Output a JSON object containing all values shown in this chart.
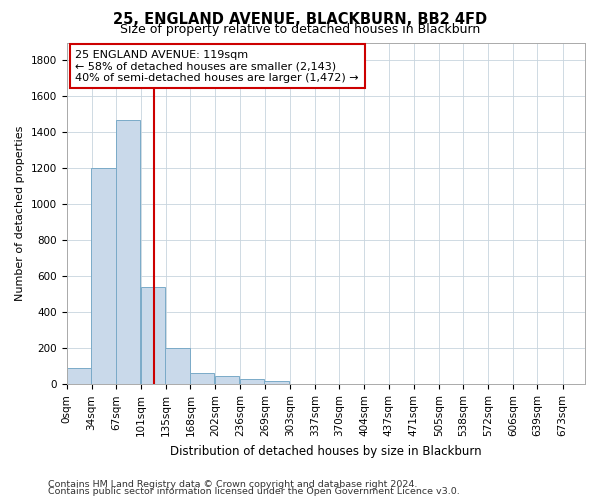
{
  "title": "25, ENGLAND AVENUE, BLACKBURN, BB2 4FD",
  "subtitle": "Size of property relative to detached houses in Blackburn",
  "xlabel": "Distribution of detached houses by size in Blackburn",
  "ylabel": "Number of detached properties",
  "bin_labels": [
    "0sqm",
    "34sqm",
    "67sqm",
    "101sqm",
    "135sqm",
    "168sqm",
    "202sqm",
    "236sqm",
    "269sqm",
    "303sqm",
    "337sqm",
    "370sqm",
    "404sqm",
    "437sqm",
    "471sqm",
    "505sqm",
    "538sqm",
    "572sqm",
    "606sqm",
    "639sqm",
    "673sqm"
  ],
  "bar_values": [
    90,
    1200,
    1470,
    540,
    200,
    65,
    45,
    30,
    20,
    0,
    0,
    0,
    0,
    0,
    0,
    0,
    0,
    0,
    0,
    0
  ],
  "bar_color": "#c9d9ea",
  "bar_edge_color": "#7aaac8",
  "property_line_x": 119,
  "bin_width": 33.5,
  "annotation_line1": "25 ENGLAND AVENUE: 119sqm",
  "annotation_line2": "← 58% of detached houses are smaller (2,143)",
  "annotation_line3": "40% of semi-detached houses are larger (1,472) →",
  "annotation_box_color": "#ffffff",
  "annotation_box_edge": "#cc0000",
  "red_line_color": "#cc0000",
  "ylim": [
    0,
    1900
  ],
  "yticks": [
    0,
    200,
    400,
    600,
    800,
    1000,
    1200,
    1400,
    1600,
    1800
  ],
  "footnote1": "Contains HM Land Registry data © Crown copyright and database right 2024.",
  "footnote2": "Contains public sector information licensed under the Open Government Licence v3.0.",
  "background_color": "#ffffff",
  "grid_color": "#c8d4de",
  "title_fontsize": 10.5,
  "subtitle_fontsize": 9,
  "axis_label_fontsize": 8.5,
  "ylabel_fontsize": 8,
  "tick_fontsize": 7.5,
  "annotation_fontsize": 8,
  "footnote_fontsize": 6.8
}
